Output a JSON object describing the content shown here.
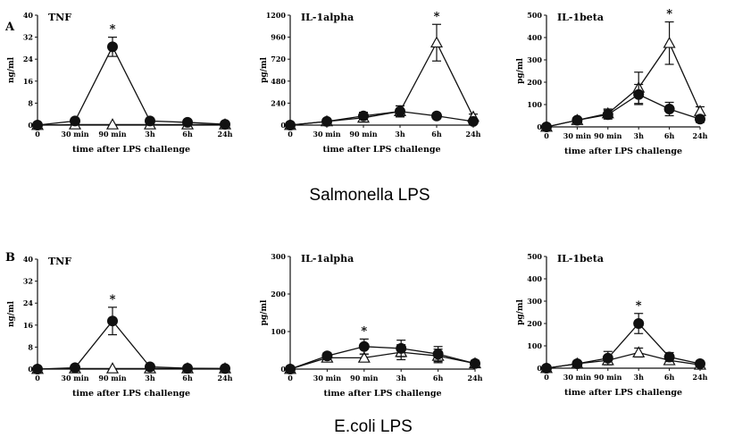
{
  "panel_labels": [
    "A",
    "B"
  ],
  "group_titles": [
    "Salmonella LPS",
    "E.coli LPS"
  ],
  "chart_data": [
    {
      "type": "line",
      "panel": "A",
      "title": "TNF",
      "ylabel": "ng/ml",
      "xlabel": "time after LPS challenge",
      "categories": [
        "0",
        "30 min",
        "90 min",
        "3h",
        "6h",
        "24h"
      ],
      "ylim": [
        0,
        40
      ],
      "yticks": [
        0,
        8,
        16,
        24,
        32,
        40
      ],
      "series": [
        {
          "marker": "filled-circle",
          "values": [
            0,
            1.5,
            28.5,
            1.5,
            1,
            0.3
          ],
          "errors": [
            0,
            0.5,
            3.5,
            0.5,
            0.4,
            0.2
          ]
        },
        {
          "marker": "open-triangle",
          "values": [
            0,
            0.2,
            0.2,
            0.2,
            0.2,
            0.2
          ],
          "errors": [
            0,
            0,
            0,
            0,
            0,
            0
          ]
        }
      ],
      "significant": [
        "90 min"
      ],
      "annotation": "*"
    },
    {
      "type": "line",
      "panel": "A",
      "title": "IL-1alpha",
      "ylabel": "pg/ml",
      "xlabel": "time after LPS challenge",
      "categories": [
        "0",
        "30 min",
        "90 min",
        "3h",
        "6h",
        "24h"
      ],
      "ylim": [
        0,
        1200
      ],
      "yticks": [
        0,
        240,
        480,
        720,
        960,
        1200
      ],
      "series": [
        {
          "marker": "filled-circle",
          "values": [
            0,
            40,
            100,
            150,
            100,
            40
          ],
          "errors": [
            0,
            15,
            40,
            60,
            30,
            15
          ]
        },
        {
          "marker": "open-triangle",
          "values": [
            0,
            40,
            80,
            150,
            900,
            90
          ],
          "errors": [
            0,
            10,
            30,
            60,
            200,
            30
          ]
        }
      ],
      "significant": [
        "6h"
      ],
      "annotation": "*"
    },
    {
      "type": "line",
      "panel": "A",
      "title": "IL-1beta",
      "ylabel": "pg/ml",
      "xlabel": "time after LPS challenge",
      "categories": [
        "0",
        "30 min",
        "90 min",
        "3h",
        "6h",
        "24h"
      ],
      "ylim": [
        0,
        500
      ],
      "yticks": [
        0,
        100,
        200,
        300,
        400,
        500
      ],
      "series": [
        {
          "marker": "filled-circle",
          "values": [
            0,
            30,
            55,
            145,
            80,
            35
          ],
          "errors": [
            0,
            10,
            20,
            45,
            30,
            15
          ]
        },
        {
          "marker": "open-triangle",
          "values": [
            0,
            30,
            60,
            175,
            375,
            70
          ],
          "errors": [
            0,
            10,
            20,
            70,
            95,
            20
          ]
        }
      ],
      "significant": [
        "6h"
      ],
      "annotation": "*"
    },
    {
      "type": "line",
      "panel": "B",
      "title": "TNF",
      "ylabel": "ng/ml",
      "xlabel": "time after LPS challenge",
      "categories": [
        "0",
        "30 min",
        "90 min",
        "3h",
        "6h",
        "24h"
      ],
      "ylim": [
        0,
        40
      ],
      "yticks": [
        0,
        8,
        16,
        24,
        32,
        40
      ],
      "series": [
        {
          "marker": "filled-circle",
          "values": [
            0,
            0.5,
            17.5,
            0.8,
            0.3,
            0.2
          ],
          "errors": [
            0,
            0.3,
            5,
            0.5,
            0.3,
            0.2
          ]
        },
        {
          "marker": "open-triangle",
          "values": [
            0,
            0.2,
            0.2,
            0.2,
            0.2,
            0.2
          ],
          "errors": [
            0,
            0,
            0,
            0,
            0,
            0
          ]
        }
      ],
      "significant": [
        "90 min"
      ],
      "annotation": "*"
    },
    {
      "type": "line",
      "panel": "B",
      "title": "IL-1alpha",
      "ylabel": "pg/ml",
      "xlabel": "time after LPS challenge",
      "categories": [
        "0",
        "30 min",
        "90 min",
        "3h",
        "6h",
        "24h"
      ],
      "ylim": [
        0,
        300
      ],
      "yticks": [
        0,
        100,
        200,
        300
      ],
      "series": [
        {
          "marker": "filled-circle",
          "values": [
            0,
            35,
            60,
            55,
            40,
            15
          ],
          "errors": [
            0,
            8,
            20,
            22,
            20,
            8
          ]
        },
        {
          "marker": "open-triangle",
          "values": [
            0,
            30,
            30,
            45,
            35,
            15
          ],
          "errors": [
            0,
            8,
            10,
            20,
            18,
            8
          ]
        }
      ],
      "significant": [
        "90 min"
      ],
      "annotation": "*"
    },
    {
      "type": "line",
      "panel": "B",
      "title": "IL-1beta",
      "ylabel": "pg/ml",
      "xlabel": "time after LPS challenge",
      "categories": [
        "0",
        "30 min",
        "90 min",
        "3h",
        "6h",
        "24h"
      ],
      "ylim": [
        0,
        500
      ],
      "yticks": [
        0,
        100,
        200,
        300,
        400,
        500
      ],
      "series": [
        {
          "marker": "filled-circle",
          "values": [
            0,
            20,
            45,
            200,
            50,
            20
          ],
          "errors": [
            0,
            8,
            30,
            45,
            20,
            8
          ]
        },
        {
          "marker": "open-triangle",
          "values": [
            0,
            20,
            35,
            70,
            35,
            15
          ],
          "errors": [
            0,
            8,
            15,
            20,
            15,
            8
          ]
        }
      ],
      "significant": [
        "3h"
      ],
      "annotation": "*"
    }
  ]
}
